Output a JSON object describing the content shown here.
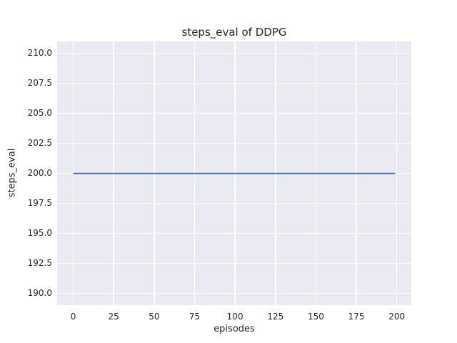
{
  "chart_data": {
    "type": "line",
    "title": "steps_eval of DDPG",
    "xlabel": "episodes",
    "ylabel": "steps_eval",
    "x_ticks": [
      0,
      25,
      50,
      75,
      100,
      125,
      150,
      175,
      200
    ],
    "x_tick_labels": [
      "0",
      "25",
      "50",
      "75",
      "100",
      "125",
      "150",
      "175",
      "200"
    ],
    "y_ticks": [
      190.0,
      192.5,
      195.0,
      197.5,
      200.0,
      202.5,
      205.0,
      207.5,
      210.0
    ],
    "y_tick_labels": [
      "190.0",
      "192.5",
      "195.0",
      "197.5",
      "200.0",
      "202.5",
      "205.0",
      "207.5",
      "210.0"
    ],
    "xlim": [
      -9.95,
      208.95
    ],
    "ylim": [
      189,
      211
    ],
    "grid": true,
    "legend_position": "none",
    "plot_background": "#eaeaf2",
    "gridline_color": "#ffffff",
    "text_color": "#262626",
    "series": [
      {
        "name": "DDPG",
        "color": "#4c72b0",
        "line_width": 2,
        "x": [
          0,
          199
        ],
        "y": [
          200,
          200
        ]
      }
    ]
  }
}
